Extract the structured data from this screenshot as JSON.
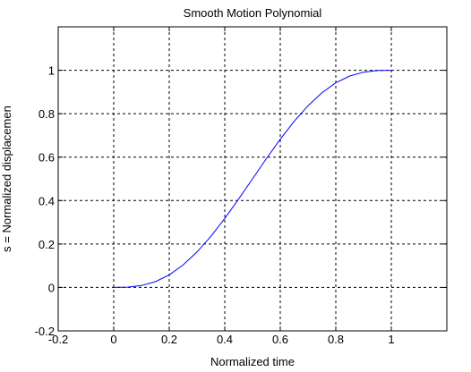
{
  "chart_data": {
    "type": "line",
    "title": "Smooth Motion Polynomial",
    "xlabel": "Normalized time",
    "ylabel": "s = Normalized displacemen",
    "xlim": [
      -0.2,
      1.2
    ],
    "ylim": [
      -0.2,
      1.2
    ],
    "xticks": [
      -0.2,
      0,
      0.2,
      0.4,
      0.6,
      0.8,
      1
    ],
    "xtick_labels": [
      "-0.2",
      "0",
      "0.2",
      "0.4",
      "0.6",
      "0.8",
      "1"
    ],
    "yticks": [
      -0.2,
      0,
      0.2,
      0.4,
      0.6,
      0.8,
      1
    ],
    "ytick_labels": [
      "-0.2",
      "0",
      "0.2",
      "0.4",
      "0.6",
      "0.8",
      "1"
    ],
    "grid": true,
    "line_color": "#0000ff",
    "x": [
      0,
      0.05,
      0.1,
      0.15,
      0.2,
      0.25,
      0.3,
      0.35,
      0.4,
      0.45,
      0.5,
      0.55,
      0.6,
      0.65,
      0.7,
      0.75,
      0.8,
      0.85,
      0.9,
      0.95,
      1
    ],
    "y": [
      0,
      0.0012,
      0.0086,
      0.0266,
      0.0579,
      0.1035,
      0.1631,
      0.2352,
      0.3174,
      0.4069,
      0.5,
      0.5931,
      0.6826,
      0.7648,
      0.8369,
      0.8965,
      0.9421,
      0.9734,
      0.9914,
      0.9988,
      1
    ]
  }
}
